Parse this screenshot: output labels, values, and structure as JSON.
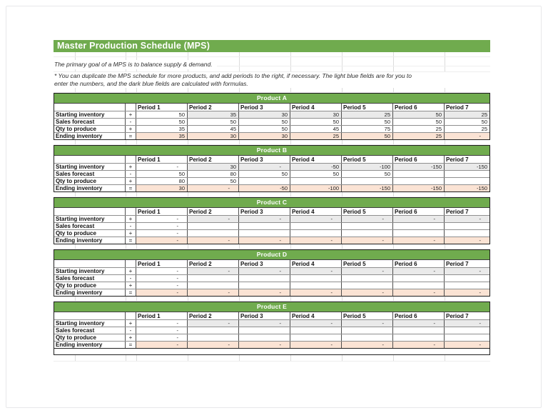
{
  "page": {
    "title": "Master Production Schedule (MPS)",
    "note1": "The primary goal of a MPS is to balance supply &  demand.",
    "note2_line1": "* You can duplicate the MPS schedule for more products, and add periods to the right, if necessary.  The light blue fields are for you to",
    "note2_line2": "enter the numbers, and the dark blue fields are calculated with formulas."
  },
  "colors": {
    "banner_green": "#70AB4E",
    "calculated_gray": "#EAEAEA",
    "calculated_peach": "#FBE3D4"
  },
  "table": {
    "period_headers": [
      "Period 1",
      "Period 2",
      "Period 3",
      "Period 4",
      "Period 5",
      "Period 6",
      "Period 7"
    ],
    "row_defs": [
      {
        "key": "starting_inventory",
        "label": "Starting inventory",
        "sign": "+"
      },
      {
        "key": "sales_forecast",
        "label": "Sales forecast",
        "sign": "-"
      },
      {
        "key": "qty_to_produce",
        "label": "Qty to produce",
        "sign": "+"
      },
      {
        "key": "ending_inventory",
        "label": "Ending inventory",
        "sign": "="
      }
    ]
  },
  "products": [
    {
      "name": "Product A",
      "values": {
        "starting_inventory": [
          "50",
          "35",
          "30",
          "30",
          "25",
          "50",
          "25"
        ],
        "sales_forecast": [
          "50",
          "50",
          "50",
          "50",
          "50",
          "50",
          "50"
        ],
        "qty_to_produce": [
          "35",
          "45",
          "50",
          "45",
          "75",
          "25",
          "25"
        ],
        "ending_inventory": [
          "35",
          "30",
          "30",
          "25",
          "50",
          "25",
          "-"
        ]
      }
    },
    {
      "name": "Product B",
      "values": {
        "starting_inventory": [
          "-",
          "30",
          "-",
          "-50",
          "-100",
          "-150",
          "-150"
        ],
        "sales_forecast": [
          "50",
          "80",
          "50",
          "50",
          "50",
          "",
          ""
        ],
        "qty_to_produce": [
          "80",
          "50",
          "",
          "",
          "",
          "",
          ""
        ],
        "ending_inventory": [
          "30",
          "-",
          "-50",
          "-100",
          "-150",
          "-150",
          "-150"
        ]
      }
    },
    {
      "name": "Product C",
      "values": {
        "starting_inventory": [
          "-",
          "-",
          "-",
          "-",
          "-",
          "-",
          "-"
        ],
        "sales_forecast": [
          "-",
          "",
          "",
          "",
          "",
          "",
          ""
        ],
        "qty_to_produce": [
          "-",
          "",
          "",
          "",
          "",
          "",
          ""
        ],
        "ending_inventory": [
          "-",
          "-",
          "-",
          "-",
          "-",
          "-",
          "-"
        ]
      }
    },
    {
      "name": "Product D",
      "values": {
        "starting_inventory": [
          "-",
          "-",
          "-",
          "-",
          "-",
          "-",
          "-"
        ],
        "sales_forecast": [
          "-",
          "",
          "",
          "",
          "",
          "",
          ""
        ],
        "qty_to_produce": [
          "-",
          "",
          "",
          "",
          "",
          "",
          ""
        ],
        "ending_inventory": [
          "-",
          "-",
          "-",
          "-",
          "-",
          "-",
          "-"
        ]
      }
    },
    {
      "name": "Product E",
      "values": {
        "starting_inventory": [
          "-",
          "-",
          "-",
          "-",
          "-",
          "-",
          "-"
        ],
        "sales_forecast": [
          "-",
          "",
          "",
          "",
          "",
          "",
          ""
        ],
        "qty_to_produce": [
          "-",
          "",
          "",
          "",
          "",
          "",
          ""
        ],
        "ending_inventory": [
          "-",
          "-",
          "-",
          "-",
          "-",
          "-",
          "-"
        ]
      }
    }
  ]
}
